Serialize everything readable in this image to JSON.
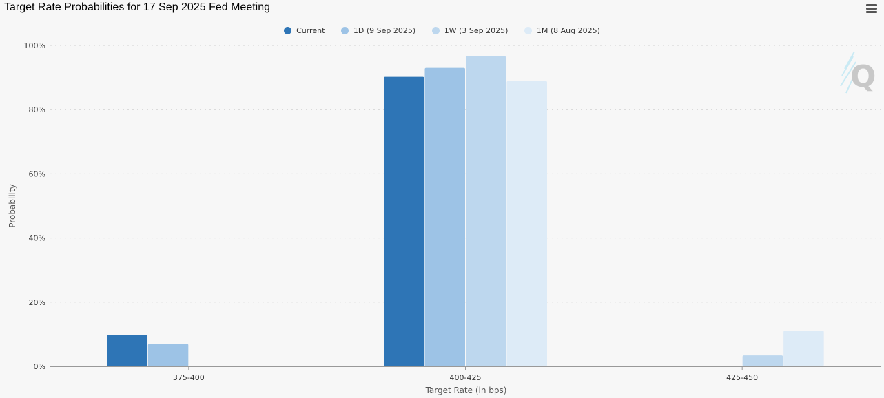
{
  "title": "Target Rate Probabilities for 17 Sep 2025 Fed Meeting",
  "menu_icon": "hamburger-menu-icon",
  "watermark_icon": "q-logo-icon",
  "colors": {
    "current": "#2e75b6",
    "d1": "#9dc3e6",
    "w1": "#bdd7ee",
    "m1": "#ddebf7",
    "grid": "#d0d0d0",
    "axis": "#999999"
  },
  "chart_data": {
    "type": "bar",
    "title": "Target Rate Probabilities for 17 Sep 2025 Fed Meeting",
    "xlabel": "Target Rate (in bps)",
    "ylabel": "Probability",
    "categories": [
      "375-400",
      "400-425",
      "425-450"
    ],
    "series": [
      {
        "name": "Current",
        "values": [
          9.8,
          90.2,
          0
        ]
      },
      {
        "name": "1D (9 Sep 2025)",
        "values": [
          7.0,
          93.0,
          0
        ]
      },
      {
        "name": "1W (3 Sep 2025)",
        "values": [
          0,
          96.6,
          3.4
        ]
      },
      {
        "name": "1M (8 Aug 2025)",
        "values": [
          0,
          88.9,
          11.1
        ]
      }
    ],
    "ylim": [
      0,
      100
    ],
    "yticks": [
      "0%",
      "20%",
      "40%",
      "60%",
      "80%",
      "100%"
    ],
    "grid": true,
    "legend_position": "top-center"
  }
}
